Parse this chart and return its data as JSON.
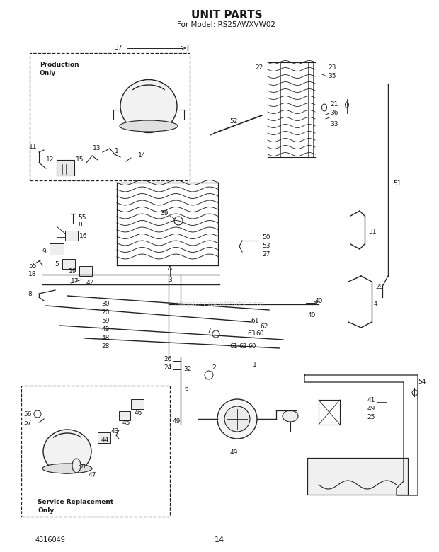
{
  "title": "UNIT PARTS",
  "subtitle": "For Model: RS25AWXVW02",
  "bottom_left": "4316049",
  "bottom_center": "14",
  "watermark": "eReplacementParts.com",
  "bg": "#ffffff",
  "lc": "#222222",
  "tc": "#1a1a1a",
  "fs": 6.5,
  "title_fs": 11,
  "sub_fs": 7.5
}
